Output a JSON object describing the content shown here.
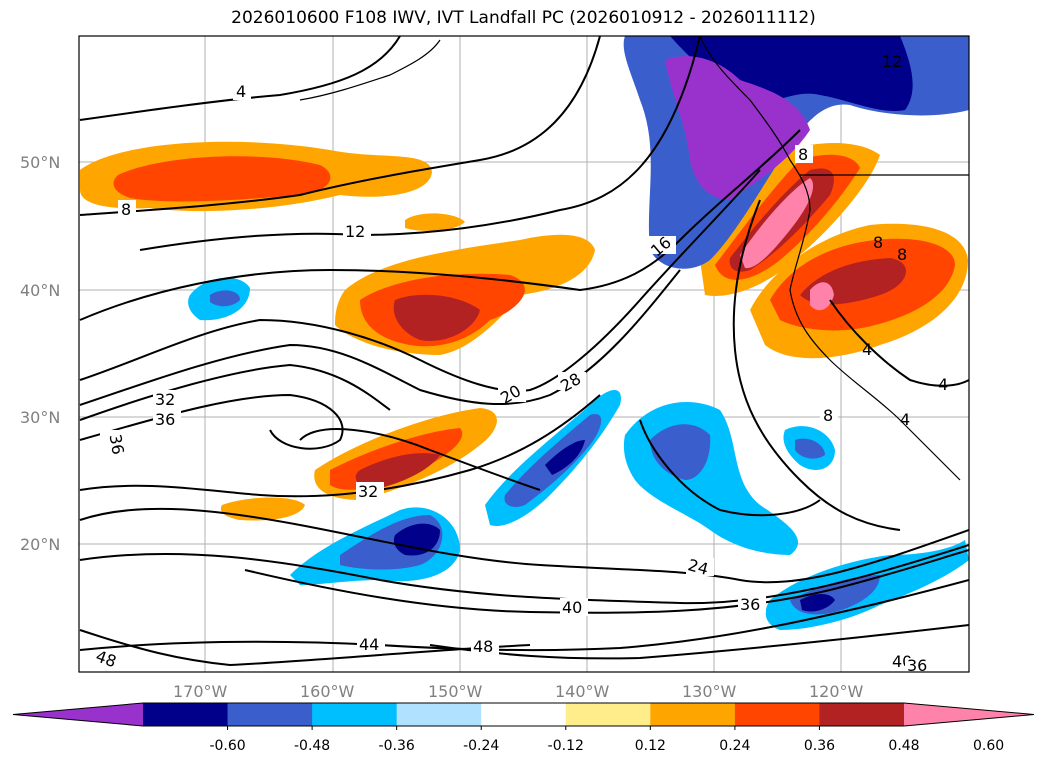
{
  "title": "2026010600 F108 IWV, IVT Landfall PC (2026010912 - 2026011112)",
  "lat_labels": [
    "50°N",
    "40°N",
    "30°N",
    "20°N"
  ],
  "lon_labels": [
    "170°W",
    "160°W",
    "150°W",
    "140°W",
    "130°W",
    "120°W"
  ],
  "contour_labels": [
    "4",
    "8",
    "12",
    "16",
    "20",
    "28",
    "32",
    "36",
    "36",
    "32",
    "24",
    "36",
    "40",
    "44",
    "48",
    "48",
    "40",
    "36",
    "8",
    "8",
    "4",
    "4",
    "4",
    "8",
    "12",
    "8"
  ],
  "colorbar": {
    "ticks": [
      "-0.60",
      "-0.48",
      "-0.36",
      "-0.24",
      "-0.12",
      "0.12",
      "0.24",
      "0.36",
      "0.48",
      "0.60"
    ],
    "colors": [
      "#9932cc",
      "#00008b",
      "#3a5fcd",
      "#00bfff",
      "#b0e2ff",
      "#ffffff",
      "#ffec8b",
      "#ffa500",
      "#ff4500",
      "#b22222",
      "#ff82ab"
    ]
  }
}
